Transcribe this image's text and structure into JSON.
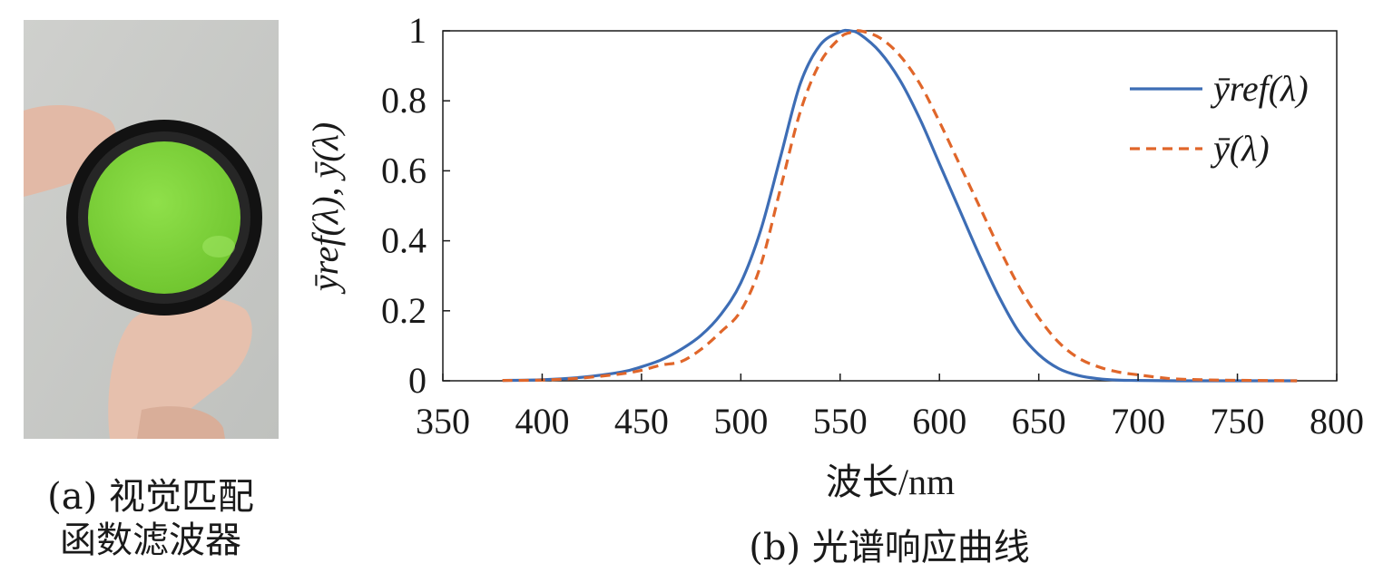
{
  "panel_a": {
    "caption_line1": "(a) 视觉匹配",
    "caption_line2": "函数滤波器",
    "filter_color": "#7fd43a"
  },
  "panel_b": {
    "caption": "(b) 光谱响应曲线"
  },
  "chart_data": {
    "type": "line",
    "xlabel": "波长/nm",
    "ylabel": "ȳref(λ), ȳ(λ)",
    "xlim": [
      350,
      800
    ],
    "ylim": [
      0,
      1
    ],
    "xticks": [
      350,
      400,
      450,
      500,
      550,
      600,
      650,
      700,
      750,
      800
    ],
    "yticks": [
      0,
      0.2,
      0.4,
      0.6,
      0.8,
      1
    ],
    "ytick_labels": [
      "0",
      "0.2",
      "0.4",
      "0.6",
      "0.8",
      "1"
    ],
    "grid": false,
    "legend_position": "top-right",
    "series": [
      {
        "name": "ȳref(λ)",
        "color": "#3d6db5",
        "style": "solid",
        "x": [
          380,
          400,
          420,
          440,
          450,
          460,
          470,
          480,
          490,
          500,
          510,
          520,
          530,
          540,
          550,
          555,
          560,
          570,
          580,
          590,
          600,
          610,
          620,
          630,
          640,
          650,
          660,
          670,
          680,
          690,
          700,
          720,
          740,
          760,
          780
        ],
        "y": [
          0.001,
          0.003,
          0.01,
          0.025,
          0.04,
          0.06,
          0.09,
          0.13,
          0.19,
          0.28,
          0.43,
          0.64,
          0.85,
          0.96,
          0.997,
          1.0,
          0.99,
          0.94,
          0.86,
          0.75,
          0.62,
          0.49,
          0.36,
          0.24,
          0.14,
          0.075,
          0.035,
          0.015,
          0.006,
          0.002,
          0.001,
          0.0,
          0.0,
          0.0,
          0.0
        ]
      },
      {
        "name": "ȳ(λ)",
        "color": "#e0662a",
        "style": "dashed",
        "x": [
          380,
          400,
          420,
          440,
          450,
          460,
          470,
          480,
          490,
          500,
          510,
          520,
          530,
          540,
          550,
          555,
          560,
          570,
          580,
          590,
          600,
          610,
          620,
          630,
          640,
          650,
          660,
          670,
          680,
          690,
          700,
          710,
          720,
          740,
          760,
          780
        ],
        "y": [
          0.001,
          0.002,
          0.008,
          0.02,
          0.03,
          0.045,
          0.055,
          0.09,
          0.14,
          0.2,
          0.33,
          0.55,
          0.77,
          0.91,
          0.98,
          0.995,
          1.0,
          0.98,
          0.93,
          0.85,
          0.74,
          0.62,
          0.5,
          0.38,
          0.27,
          0.18,
          0.11,
          0.065,
          0.04,
          0.025,
          0.017,
          0.01,
          0.005,
          0.002,
          0.001,
          0.0
        ]
      }
    ]
  }
}
